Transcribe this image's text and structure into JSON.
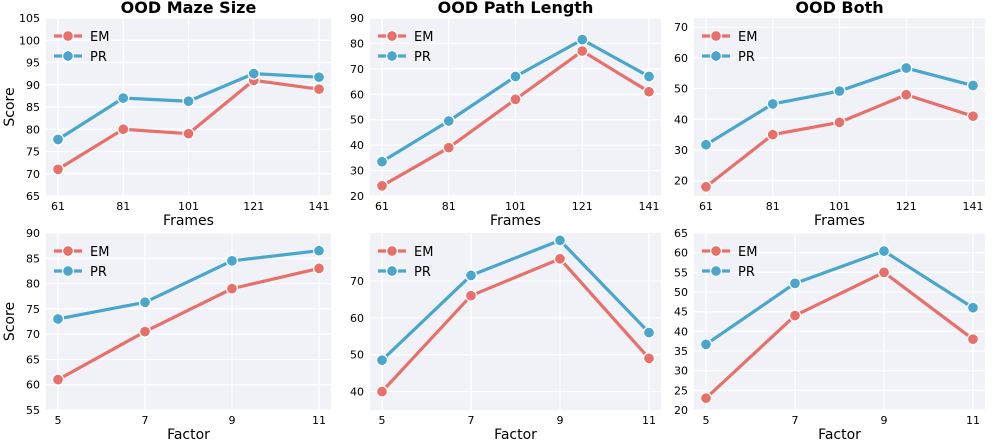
{
  "colors": {
    "EM": "#e8706a",
    "PR": "#4aa6cb",
    "marker_edge": "#ffffff"
  },
  "chart_data": [
    {
      "type": "line",
      "title": "OOD Maze Size",
      "xlabel": "Frames",
      "ylabel": "Score",
      "categories": [
        "61",
        "81",
        "101",
        "121",
        "141"
      ],
      "yticks": [
        65,
        70,
        75,
        80,
        85,
        90,
        95,
        100,
        105
      ],
      "ylim": [
        65,
        105
      ],
      "grid": true,
      "legend": "top-left",
      "series": [
        {
          "name": "EM",
          "values": [
            71,
            80,
            79,
            91,
            89
          ]
        },
        {
          "name": "PR",
          "values": [
            77.7,
            87,
            86.3,
            92.5,
            91.7
          ]
        }
      ]
    },
    {
      "type": "line",
      "title": "OOD Path Length",
      "xlabel": "Frames",
      "ylabel": "",
      "categories": [
        "61",
        "81",
        "101",
        "121",
        "141"
      ],
      "yticks": [
        20,
        30,
        40,
        50,
        60,
        70,
        80,
        90
      ],
      "ylim": [
        20,
        90
      ],
      "grid": true,
      "legend": "top-left",
      "series": [
        {
          "name": "EM",
          "values": [
            24,
            39,
            58,
            77,
            61
          ]
        },
        {
          "name": "PR",
          "values": [
            33.5,
            49.5,
            67,
            81.5,
            67
          ]
        }
      ]
    },
    {
      "type": "line",
      "title": "OOD Both",
      "xlabel": "Frames",
      "ylabel": "",
      "categories": [
        "61",
        "81",
        "101",
        "121",
        "141"
      ],
      "yticks": [
        20,
        30,
        40,
        50,
        60,
        70
      ],
      "ylim": [
        15,
        73
      ],
      "grid": true,
      "legend": "top-left",
      "series": [
        {
          "name": "EM",
          "values": [
            18,
            35,
            39,
            48,
            41
          ]
        },
        {
          "name": "PR",
          "values": [
            31.7,
            45,
            49.2,
            56.7,
            51
          ]
        }
      ]
    },
    {
      "type": "line",
      "title": "",
      "xlabel": "Factor",
      "ylabel": "Score",
      "categories": [
        "5",
        "7",
        "9",
        "11"
      ],
      "yticks": [
        55,
        60,
        65,
        70,
        75,
        80,
        85,
        90
      ],
      "ylim": [
        55,
        90
      ],
      "grid": true,
      "legend": "top-left",
      "series": [
        {
          "name": "EM",
          "values": [
            61,
            70.5,
            79,
            83
          ]
        },
        {
          "name": "PR",
          "values": [
            73,
            76.3,
            84.5,
            86.5
          ]
        }
      ]
    },
    {
      "type": "line",
      "title": "",
      "xlabel": "Factor",
      "ylabel": "",
      "categories": [
        "5",
        "7",
        "9",
        "11"
      ],
      "yticks": [
        40,
        50,
        60,
        70
      ],
      "ylim": [
        35,
        83
      ],
      "grid": true,
      "legend": "top-left",
      "series": [
        {
          "name": "EM",
          "values": [
            40,
            66,
            76,
            49
          ]
        },
        {
          "name": "PR",
          "values": [
            48.5,
            71.5,
            81,
            56
          ]
        }
      ]
    },
    {
      "type": "line",
      "title": "",
      "xlabel": "Factor",
      "ylabel": "",
      "categories": [
        "5",
        "7",
        "9",
        "11"
      ],
      "yticks": [
        20,
        25,
        30,
        35,
        40,
        45,
        50,
        55,
        60,
        65
      ],
      "ylim": [
        20,
        65
      ],
      "grid": true,
      "legend": "top-left",
      "series": [
        {
          "name": "EM",
          "values": [
            23,
            44,
            55,
            38
          ]
        },
        {
          "name": "PR",
          "values": [
            36.7,
            52.2,
            60.4,
            46
          ]
        }
      ]
    }
  ]
}
